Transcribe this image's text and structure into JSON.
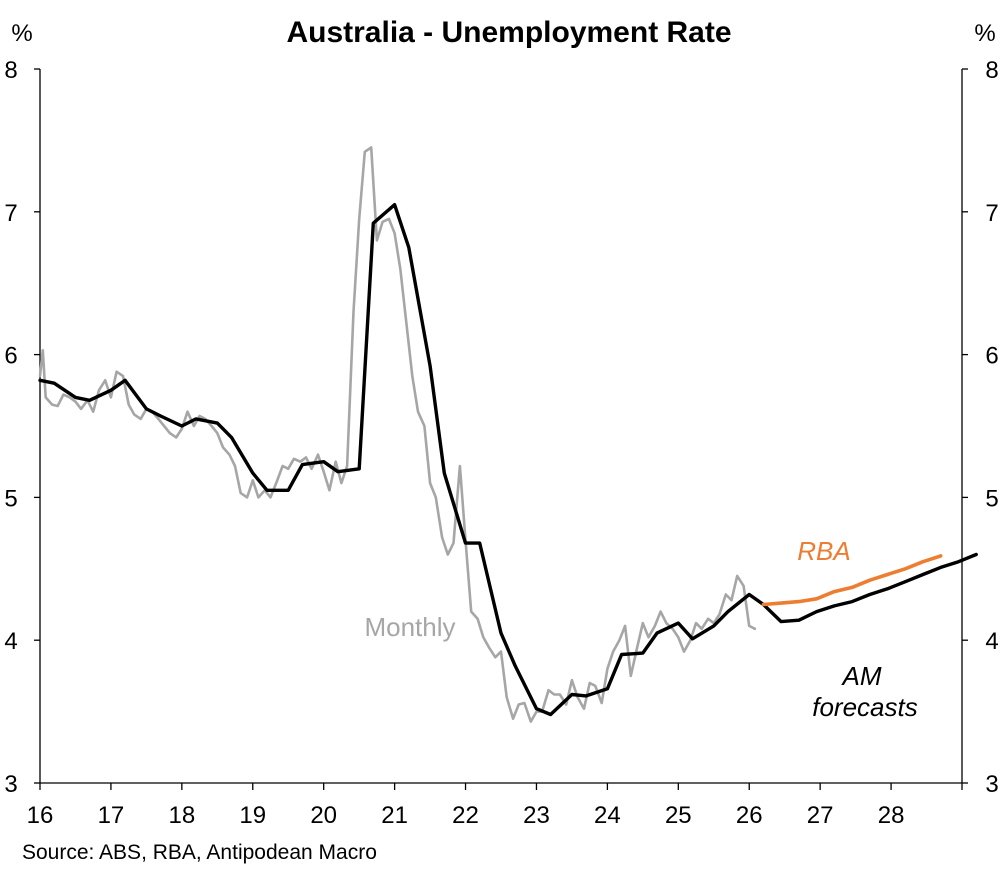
{
  "chart_data": {
    "type": "line",
    "title": "Australia - Unemployment Rate",
    "unit_left": "%",
    "unit_right": "%",
    "source": "Source: ABS, RBA, Antipodean Macro",
    "xlim": [
      2016,
      2029
    ],
    "ylim": [
      3,
      8
    ],
    "x_tick_labels": [
      "16",
      "17",
      "18",
      "19",
      "20",
      "21",
      "22",
      "23",
      "24",
      "25",
      "26",
      "27",
      "28"
    ],
    "y_tick_labels": [
      "3",
      "4",
      "5",
      "6",
      "7",
      "8"
    ],
    "grid": false,
    "annotations": {
      "monthly": "Monthly",
      "rba": "RBA",
      "am_line1": "AM",
      "am_line2": "forecasts"
    },
    "colors": {
      "quarterly": "#000000",
      "monthly": "#a6a6a6",
      "rba": "#ed7d31",
      "am": "#000000"
    },
    "series": [
      {
        "id": "monthly",
        "values": [
          [
            2016.0,
            5.85
          ],
          [
            2016.04,
            6.03
          ],
          [
            2016.08,
            5.7
          ],
          [
            2016.17,
            5.65
          ],
          [
            2016.25,
            5.64
          ],
          [
            2016.33,
            5.72
          ],
          [
            2016.42,
            5.7
          ],
          [
            2016.5,
            5.67
          ],
          [
            2016.58,
            5.62
          ],
          [
            2016.67,
            5.68
          ],
          [
            2016.75,
            5.6
          ],
          [
            2016.83,
            5.75
          ],
          [
            2016.92,
            5.82
          ],
          [
            2017.0,
            5.7
          ],
          [
            2017.08,
            5.88
          ],
          [
            2017.17,
            5.85
          ],
          [
            2017.25,
            5.65
          ],
          [
            2017.33,
            5.58
          ],
          [
            2017.42,
            5.55
          ],
          [
            2017.5,
            5.62
          ],
          [
            2017.58,
            5.6
          ],
          [
            2017.67,
            5.55
          ],
          [
            2017.75,
            5.5
          ],
          [
            2017.83,
            5.45
          ],
          [
            2017.92,
            5.42
          ],
          [
            2018.0,
            5.48
          ],
          [
            2018.08,
            5.6
          ],
          [
            2018.17,
            5.5
          ],
          [
            2018.25,
            5.57
          ],
          [
            2018.33,
            5.55
          ],
          [
            2018.42,
            5.5
          ],
          [
            2018.5,
            5.45
          ],
          [
            2018.58,
            5.35
          ],
          [
            2018.67,
            5.3
          ],
          [
            2018.75,
            5.22
          ],
          [
            2018.83,
            5.03
          ],
          [
            2018.92,
            5.0
          ],
          [
            2019.0,
            5.12
          ],
          [
            2019.08,
            5.0
          ],
          [
            2019.17,
            5.05
          ],
          [
            2019.25,
            5.0
          ],
          [
            2019.33,
            5.1
          ],
          [
            2019.42,
            5.22
          ],
          [
            2019.5,
            5.2
          ],
          [
            2019.58,
            5.27
          ],
          [
            2019.67,
            5.25
          ],
          [
            2019.75,
            5.28
          ],
          [
            2019.83,
            5.2
          ],
          [
            2019.92,
            5.3
          ],
          [
            2020.0,
            5.18
          ],
          [
            2020.08,
            5.05
          ],
          [
            2020.17,
            5.25
          ],
          [
            2020.25,
            5.1
          ],
          [
            2020.33,
            5.22
          ],
          [
            2020.42,
            6.3
          ],
          [
            2020.5,
            6.95
          ],
          [
            2020.58,
            7.42
          ],
          [
            2020.67,
            7.45
          ],
          [
            2020.75,
            6.8
          ],
          [
            2020.83,
            6.93
          ],
          [
            2020.92,
            6.95
          ],
          [
            2021.0,
            6.85
          ],
          [
            2021.08,
            6.6
          ],
          [
            2021.17,
            6.2
          ],
          [
            2021.25,
            5.85
          ],
          [
            2021.33,
            5.6
          ],
          [
            2021.42,
            5.5
          ],
          [
            2021.5,
            5.1
          ],
          [
            2021.58,
            5.0
          ],
          [
            2021.67,
            4.72
          ],
          [
            2021.75,
            4.6
          ],
          [
            2021.83,
            4.68
          ],
          [
            2021.92,
            5.22
          ],
          [
            2022.0,
            4.7
          ],
          [
            2022.08,
            4.2
          ],
          [
            2022.17,
            4.15
          ],
          [
            2022.25,
            4.02
          ],
          [
            2022.33,
            3.95
          ],
          [
            2022.42,
            3.88
          ],
          [
            2022.5,
            3.92
          ],
          [
            2022.58,
            3.6
          ],
          [
            2022.67,
            3.45
          ],
          [
            2022.75,
            3.55
          ],
          [
            2022.83,
            3.56
          ],
          [
            2022.92,
            3.43
          ],
          [
            2023.0,
            3.5
          ],
          [
            2023.08,
            3.5
          ],
          [
            2023.17,
            3.65
          ],
          [
            2023.25,
            3.62
          ],
          [
            2023.33,
            3.62
          ],
          [
            2023.42,
            3.55
          ],
          [
            2023.5,
            3.72
          ],
          [
            2023.58,
            3.6
          ],
          [
            2023.67,
            3.52
          ],
          [
            2023.75,
            3.7
          ],
          [
            2023.83,
            3.68
          ],
          [
            2023.92,
            3.56
          ],
          [
            2024.0,
            3.8
          ],
          [
            2024.08,
            3.92
          ],
          [
            2024.17,
            4.0
          ],
          [
            2024.25,
            4.1
          ],
          [
            2024.33,
            3.75
          ],
          [
            2024.42,
            3.95
          ],
          [
            2024.5,
            4.12
          ],
          [
            2024.58,
            4.02
          ],
          [
            2024.67,
            4.1
          ],
          [
            2024.75,
            4.2
          ],
          [
            2024.83,
            4.12
          ],
          [
            2024.92,
            4.08
          ],
          [
            2025.0,
            4.02
          ],
          [
            2025.08,
            3.92
          ],
          [
            2025.17,
            4.0
          ],
          [
            2025.25,
            4.12
          ],
          [
            2025.33,
            4.08
          ],
          [
            2025.42,
            4.15
          ],
          [
            2025.5,
            4.12
          ],
          [
            2025.58,
            4.18
          ],
          [
            2025.67,
            4.32
          ],
          [
            2025.75,
            4.28
          ],
          [
            2025.83,
            4.45
          ],
          [
            2025.92,
            4.38
          ],
          [
            2026.0,
            4.1
          ],
          [
            2026.08,
            4.08
          ]
        ]
      },
      {
        "id": "quarterly",
        "values": [
          [
            2016.0,
            5.82
          ],
          [
            2016.2,
            5.8
          ],
          [
            2016.5,
            5.7
          ],
          [
            2016.7,
            5.68
          ],
          [
            2017.0,
            5.75
          ],
          [
            2017.2,
            5.82
          ],
          [
            2017.5,
            5.62
          ],
          [
            2017.7,
            5.57
          ],
          [
            2018.0,
            5.5
          ],
          [
            2018.2,
            5.55
          ],
          [
            2018.5,
            5.52
          ],
          [
            2018.7,
            5.42
          ],
          [
            2019.0,
            5.17
          ],
          [
            2019.2,
            5.05
          ],
          [
            2019.5,
            5.05
          ],
          [
            2019.7,
            5.23
          ],
          [
            2020.0,
            5.25
          ],
          [
            2020.2,
            5.18
          ],
          [
            2020.5,
            5.2
          ],
          [
            2020.7,
            6.92
          ],
          [
            2021.0,
            7.05
          ],
          [
            2021.2,
            6.75
          ],
          [
            2021.5,
            5.92
          ],
          [
            2021.7,
            5.17
          ],
          [
            2022.0,
            4.68
          ],
          [
            2022.2,
            4.68
          ],
          [
            2022.5,
            4.05
          ],
          [
            2022.7,
            3.82
          ],
          [
            2023.0,
            3.52
          ],
          [
            2023.2,
            3.48
          ],
          [
            2023.5,
            3.62
          ],
          [
            2023.7,
            3.61
          ],
          [
            2024.0,
            3.66
          ],
          [
            2024.2,
            3.9
          ],
          [
            2024.5,
            3.91
          ],
          [
            2024.7,
            4.05
          ],
          [
            2025.0,
            4.12
          ],
          [
            2025.2,
            4.01
          ],
          [
            2025.5,
            4.1
          ],
          [
            2025.7,
            4.2
          ],
          [
            2026.0,
            4.32
          ],
          [
            2026.2,
            4.25
          ]
        ]
      },
      {
        "id": "am_forecasts",
        "values": [
          [
            2026.2,
            4.25
          ],
          [
            2026.45,
            4.13
          ],
          [
            2026.7,
            4.14
          ],
          [
            2026.95,
            4.2
          ],
          [
            2027.2,
            4.24
          ],
          [
            2027.45,
            4.27
          ],
          [
            2027.7,
            4.32
          ],
          [
            2027.95,
            4.36
          ],
          [
            2028.2,
            4.41
          ],
          [
            2028.45,
            4.46
          ],
          [
            2028.7,
            4.51
          ],
          [
            2028.95,
            4.55
          ],
          [
            2029.2,
            4.6
          ]
        ]
      },
      {
        "id": "rba",
        "values": [
          [
            2026.2,
            4.25
          ],
          [
            2026.45,
            4.26
          ],
          [
            2026.7,
            4.27
          ],
          [
            2026.95,
            4.29
          ],
          [
            2027.2,
            4.34
          ],
          [
            2027.45,
            4.37
          ],
          [
            2027.7,
            4.42
          ],
          [
            2027.95,
            4.46
          ],
          [
            2028.2,
            4.5
          ],
          [
            2028.45,
            4.55
          ],
          [
            2028.7,
            4.59
          ]
        ]
      }
    ]
  }
}
